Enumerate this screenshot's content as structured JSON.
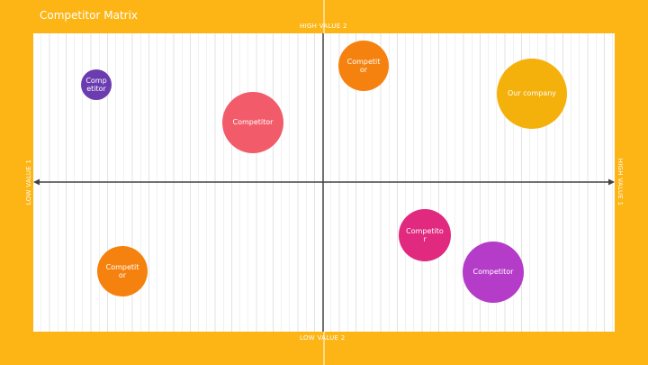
{
  "header": {
    "title": "Competitor Matrix"
  },
  "axes": {
    "top": "HIGH VALUE 2",
    "bottom": "LOW VALUE 2",
    "left": "LOW VALUE 1",
    "right": "HIGH VALUE 1"
  },
  "nodes": [
    {
      "label": "Competitor"
    },
    {
      "label": "Competitor"
    },
    {
      "label": "Competitor"
    },
    {
      "label": "Our company"
    },
    {
      "label": "Competitor"
    },
    {
      "label": "Competitor"
    },
    {
      "label": "Competitor"
    }
  ]
}
